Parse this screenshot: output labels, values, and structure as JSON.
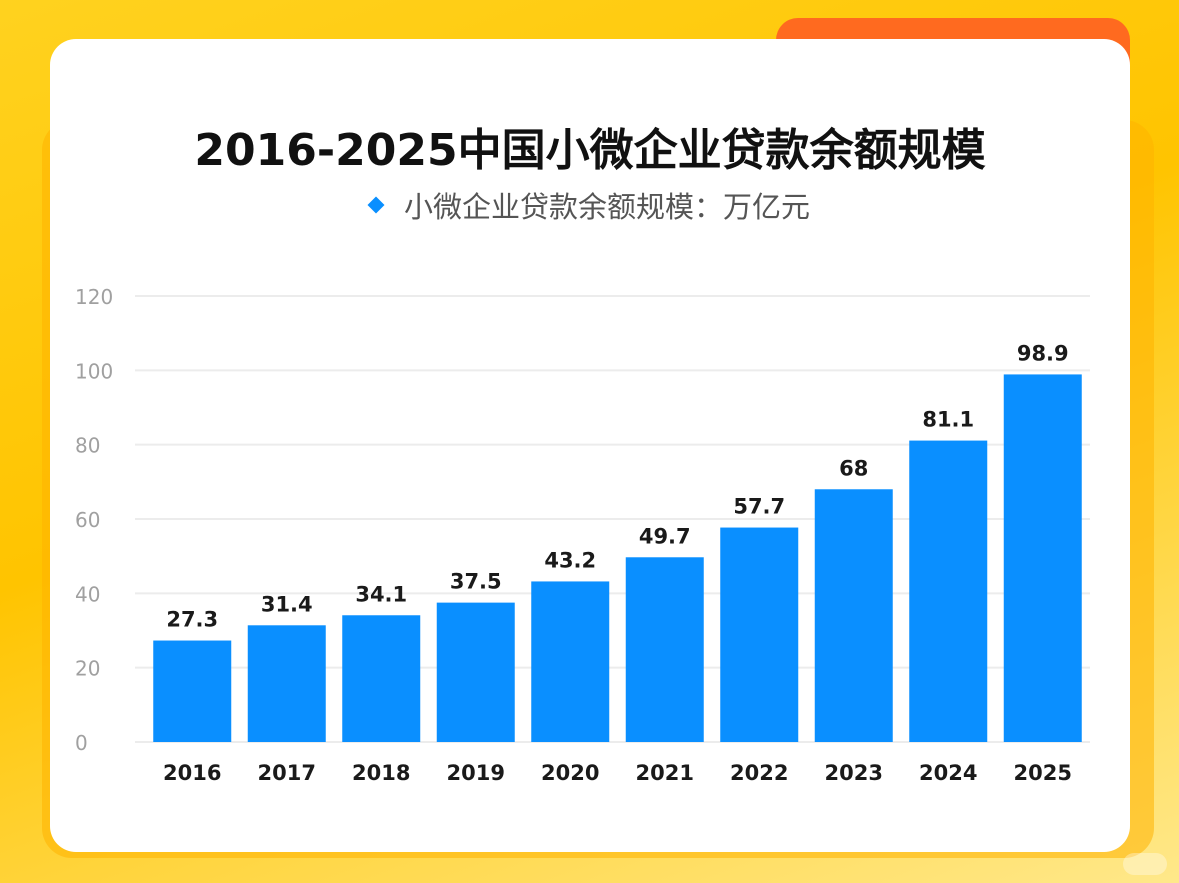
{
  "chart_data": {
    "type": "bar",
    "title": "2016-2025中国小微企业贷款余额规模",
    "legend": "小微企业贷款余额规模：万亿元",
    "categories": [
      "2016",
      "2017",
      "2018",
      "2019",
      "2020",
      "2021",
      "2022",
      "2023",
      "2024",
      "2025"
    ],
    "values": [
      27.3,
      31.4,
      34.1,
      37.5,
      43.2,
      49.7,
      57.7,
      68,
      81.1,
      98.9
    ],
    "ylim": [
      0,
      120
    ],
    "yticks": [
      0,
      20,
      40,
      60,
      80,
      100,
      120
    ],
    "grid": true,
    "legend_position": "top-center",
    "bar_color": "#0a8fff"
  }
}
